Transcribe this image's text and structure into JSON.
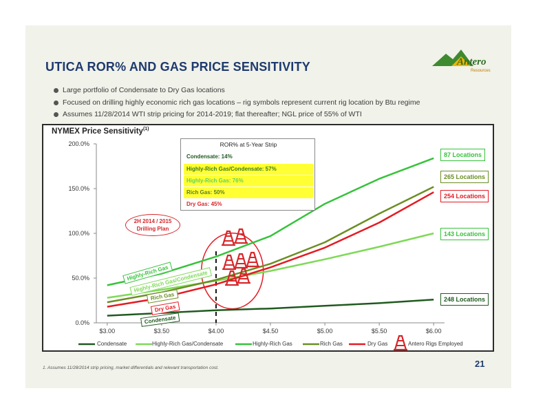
{
  "slide": {
    "title": "UTICA ROR% AND GAS PRICE SENSITIVITY",
    "page_number": "21",
    "footnote": "1.  Assumes 11/28/2014 strip pricing, market differentials and relevant transportation cost.",
    "bullets": [
      "Large portfolio of Condensate to Dry Gas locations",
      "Focused on drilling highly economic rich gas locations – rig symbols represent current rig location by Btu regime",
      "Assumes 11/28/2014 WTI strip pricing for 2014-2019; flat thereafter; NGL price of 55% of WTI"
    ],
    "logo": {
      "name": "Antero",
      "sub": "Resources",
      "icon": "mountain-logo-icon"
    },
    "colors": {
      "title": "#1e3a6f",
      "background": "#f1f2e9",
      "condensate": "#1f5a1f",
      "highly_rich_condensate": "#7ed957",
      "highly_rich": "#36c23b",
      "rich": "#6b8e23",
      "dry": "#e31b23",
      "rig": "#d6262a",
      "highlight": "#ffff33"
    }
  },
  "chart_data": {
    "type": "line",
    "title": "NYMEX Price Sensitivity",
    "title_sup": "(1)",
    "x": [
      3.0,
      3.5,
      4.0,
      4.5,
      5.0,
      5.5,
      6.0
    ],
    "x_tick_labels": [
      "$3.00",
      "$3.50",
      "$4.00",
      "$4.50",
      "$5.00",
      "$5.50",
      "$6.00"
    ],
    "y_tick_labels": [
      "0.0%",
      "50.0%",
      "100.0%",
      "150.0%",
      "200.0%"
    ],
    "ylim": [
      0,
      200
    ],
    "xlim": [
      2.9,
      6.1
    ],
    "series": [
      {
        "name": "Condensate",
        "color": "#1f5a1f",
        "values": [
          8,
          11,
          14,
          16,
          19,
          22,
          26
        ]
      },
      {
        "name": "Highly-Rich Gas/Condensate",
        "color": "#7ed957",
        "values": [
          28,
          37,
          47,
          58,
          71,
          85,
          100
        ]
      },
      {
        "name": "Highly-Rich Gas",
        "color": "#36c23b",
        "values": [
          42,
          55,
          74,
          97,
          133,
          161,
          184
        ]
      },
      {
        "name": "Rich Gas",
        "color": "#6b8e23",
        "values": [
          23,
          34,
          48,
          66,
          90,
          122,
          152
        ]
      },
      {
        "name": "Dry Gas",
        "color": "#e31b23",
        "values": [
          18,
          28,
          43,
          62,
          84,
          112,
          146
        ]
      }
    ],
    "locations": [
      {
        "label": "87 Locations",
        "color": "#36c23b"
      },
      {
        "label": "265 Locations",
        "color": "#6b8e23"
      },
      {
        "label": "254 Locations",
        "color": "#e31b23"
      },
      {
        "label": "143 Locations",
        "color": "#36c23b"
      },
      {
        "label": "248 Locations",
        "color": "#1f5a1f"
      }
    ],
    "series_tags": [
      "Highly-Rich Gas",
      "Highly-Rich Gas/Condensate",
      "Rich Gas",
      "Dry Gas",
      "Condensate"
    ],
    "ror_table": {
      "header": "ROR%  at 5-Year Strip",
      "rows": [
        "Condensate: 14%",
        "Highly-Rich Gas/Condensate: 57%",
        "Highly-Rich Gas: 76%",
        "Rich Gas: 50%",
        "Dry Gas: 45%"
      ]
    },
    "drilling_plan": {
      "line1": "2H 2014 / 2015",
      "line2": "Drilling Plan",
      "x": 4.0
    },
    "legend": [
      "Condensate",
      "Highly-Rich Gas/Condensate",
      "Highly-Rich Gas",
      "Rich Gas",
      "Dry Gas",
      "Antero Rigs Employed"
    ],
    "rig_icon": "oil-rig-icon",
    "grid": false
  }
}
